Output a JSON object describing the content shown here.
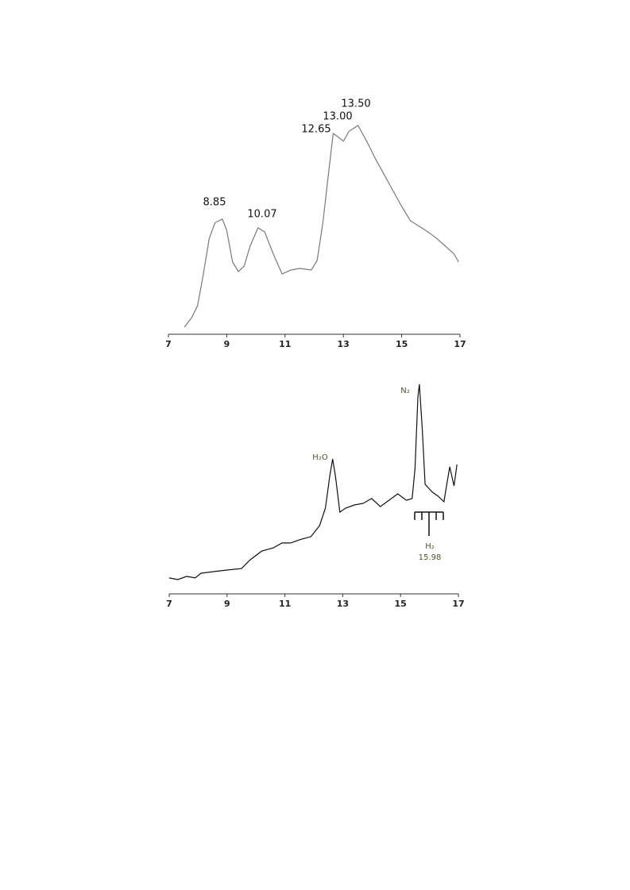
{
  "chart_data": [
    {
      "type": "line",
      "color": "#7a7a7a",
      "x": [
        7.55,
        7.8,
        8.0,
        8.2,
        8.4,
        8.6,
        8.85,
        9.0,
        9.2,
        9.4,
        9.6,
        9.8,
        10.07,
        10.3,
        10.6,
        10.9,
        11.2,
        11.5,
        11.9,
        12.1,
        12.3,
        12.5,
        12.65,
        12.8,
        13.0,
        13.2,
        13.5,
        13.8,
        14.1,
        14.4,
        14.7,
        15.0,
        15.3,
        15.6,
        15.9,
        16.2,
        16.5,
        16.8,
        16.95
      ],
      "values": [
        3.2,
        7.5,
        12.8,
        27,
        43,
        50,
        51.6,
        46.6,
        32.4,
        28.1,
        30.6,
        39.5,
        47.7,
        45.9,
        35.9,
        27,
        28.8,
        29.5,
        28.8,
        33.1,
        50.2,
        73.3,
        90,
        88.6,
        86.5,
        91,
        93.6,
        86.5,
        78.6,
        71.5,
        64.4,
        57.3,
        50.9,
        48.4,
        45.9,
        43,
        39.5,
        35.9,
        32.4
      ],
      "xlim": [
        7,
        17
      ],
      "xticks": [
        7,
        9,
        11,
        13,
        15,
        17
      ],
      "ylim": [
        0,
        100
      ],
      "annotations": [
        "8.85",
        "10.07",
        "12.65",
        "13.00",
        "13.50"
      ]
    },
    {
      "type": "line",
      "color": "#111111",
      "x": [
        7.0,
        7.3,
        7.6,
        7.9,
        8.1,
        8.5,
        9.0,
        9.5,
        9.8,
        10.2,
        10.6,
        10.9,
        11.2,
        11.5,
        11.9,
        12.2,
        12.4,
        12.55,
        12.65,
        12.75,
        12.9,
        13.1,
        13.4,
        13.7,
        14.0,
        14.3,
        14.6,
        14.9,
        15.2,
        15.4,
        15.5,
        15.6,
        15.65,
        15.75,
        15.85,
        16.1,
        16.3,
        16.5,
        16.6,
        16.7,
        16.85,
        16.95
      ],
      "values": [
        7.5,
        6.7,
        8.2,
        7.5,
        9.7,
        10.4,
        11.2,
        11.9,
        16,
        20.1,
        21.6,
        23.9,
        23.9,
        25.4,
        26.9,
        32.1,
        40.3,
        55.2,
        63.4,
        55.2,
        38.4,
        40.3,
        41.8,
        42.5,
        44.8,
        41,
        44,
        47,
        44,
        44.8,
        59,
        92.5,
        98.5,
        77.6,
        51.5,
        47.8,
        45.9,
        43.3,
        51.5,
        59.7,
        50.7,
        60.8
      ],
      "xlim": [
        7,
        17
      ],
      "xticks": [
        7,
        9,
        11,
        13,
        15,
        17
      ],
      "ylim": [
        0,
        100
      ],
      "annotations": [
        "H₂O",
        "N₂",
        "H₂",
        "15.98"
      ]
    }
  ]
}
